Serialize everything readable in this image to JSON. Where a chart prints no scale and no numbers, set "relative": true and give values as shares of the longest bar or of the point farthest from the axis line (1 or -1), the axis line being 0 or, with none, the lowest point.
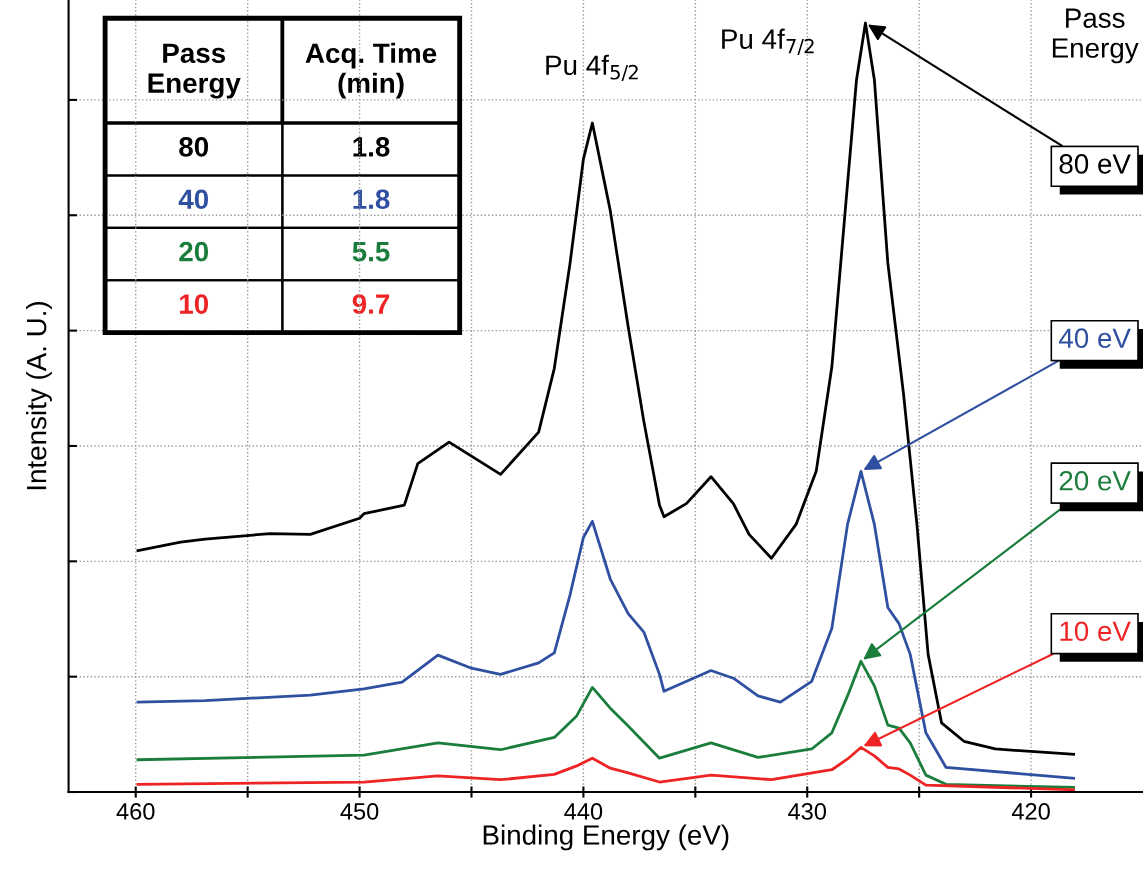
{
  "chart_data": {
    "type": "line",
    "xlabel": "Binding Energy (eV)",
    "ylabel": "Intensity (A. U.)",
    "relative": true,
    "xlim": [
      463,
      415
    ],
    "xticks": [
      460,
      {
        "value": 455,
        "label": null
      },
      450,
      {
        "value": 445,
        "label": null
      },
      440,
      {
        "value": 435,
        "label": null
      },
      430,
      {
        "value": 425,
        "label": null
      },
      420
    ],
    "tick_labels": "x",
    "grid": true,
    "legend_title": "Pass\nEnergy",
    "line_style": "solid",
    "marker": "none",
    "annotations": [
      {
        "text": "Pu 4f$_{5/2}$",
        "x": 439.6,
        "y": 0.87
      },
      {
        "text": "Pu 4f$_{7/2}$",
        "x": 427.4,
        "y": 1.0
      },
      "Pass\nEnergy",
      "Acq. Time\n(min)",
      "80",
      "1.8",
      "40",
      "1.8",
      "20",
      "5.5",
      "10",
      "9.7"
    ],
    "series": [
      {
        "name": "80 eV",
        "color": "#000000",
        "x": [
          459.9,
          458.0,
          456.9,
          454.0,
          452.2,
          450.0,
          449.8,
          448.0,
          447.4,
          446.0,
          443.7,
          442.0,
          441.3,
          440.6,
          440.0,
          439.6,
          438.8,
          438.0,
          437.3,
          436.6,
          436.4,
          435.4,
          434.3,
          433.3,
          432.6,
          431.6,
          430.5,
          429.6,
          428.9,
          428.3,
          427.8,
          427.4,
          427.0,
          426.4,
          425.7,
          425.1,
          424.6,
          424.0,
          423.0,
          421.6,
          418.1
        ],
        "values": [
          0.314,
          0.325,
          0.329,
          0.336,
          0.335,
          0.356,
          0.362,
          0.373,
          0.427,
          0.455,
          0.413,
          0.468,
          0.551,
          0.687,
          0.823,
          0.87,
          0.756,
          0.605,
          0.482,
          0.373,
          0.358,
          0.375,
          0.41,
          0.375,
          0.335,
          0.304,
          0.348,
          0.417,
          0.553,
          0.757,
          0.926,
          1.0,
          0.926,
          0.688,
          0.518,
          0.348,
          0.179,
          0.09,
          0.066,
          0.056,
          0.049
        ]
      },
      {
        "name": "40 eV",
        "color": "#2f4fa0",
        "x": [
          459.9,
          456.9,
          452.2,
          449.8,
          448.1,
          446.5,
          445.0,
          443.7,
          442.0,
          441.3,
          440.6,
          440.0,
          439.6,
          438.8,
          438.0,
          437.3,
          436.6,
          436.4,
          434.3,
          433.3,
          432.2,
          431.2,
          429.8,
          428.9,
          428.2,
          427.6,
          427.0,
          426.4,
          425.9,
          425.4,
          424.7,
          423.8,
          418.1
        ],
        "values": [
          0.117,
          0.119,
          0.126,
          0.134,
          0.143,
          0.178,
          0.161,
          0.153,
          0.168,
          0.181,
          0.256,
          0.331,
          0.352,
          0.277,
          0.232,
          0.208,
          0.153,
          0.131,
          0.158,
          0.148,
          0.125,
          0.117,
          0.144,
          0.213,
          0.348,
          0.417,
          0.348,
          0.24,
          0.219,
          0.179,
          0.077,
          0.032,
          0.018
        ]
      },
      {
        "name": "20 eV",
        "color": "#1b7d3c",
        "x": [
          459.9,
          449.8,
          446.5,
          443.7,
          441.3,
          440.3,
          439.6,
          438.8,
          438.0,
          436.6,
          434.3,
          432.2,
          429.8,
          428.9,
          428.2,
          427.6,
          427.0,
          426.4,
          425.9,
          425.4,
          424.7,
          423.8,
          418.1
        ],
        "values": [
          0.042,
          0.048,
          0.064,
          0.055,
          0.071,
          0.099,
          0.136,
          0.109,
          0.086,
          0.044,
          0.064,
          0.045,
          0.056,
          0.077,
          0.125,
          0.17,
          0.138,
          0.087,
          0.083,
          0.064,
          0.022,
          0.01,
          0.006
        ]
      },
      {
        "name": "10 eV",
        "color": "#ee2424",
        "x": [
          459.9,
          449.8,
          446.5,
          443.7,
          441.3,
          440.3,
          439.6,
          438.8,
          438.0,
          436.6,
          434.3,
          431.6,
          428.9,
          428.2,
          427.6,
          427.0,
          426.4,
          425.9,
          425.4,
          424.7,
          418.1
        ],
        "values": [
          0.01,
          0.013,
          0.021,
          0.016,
          0.023,
          0.034,
          0.044,
          0.031,
          0.025,
          0.013,
          0.022,
          0.016,
          0.029,
          0.043,
          0.058,
          0.047,
          0.032,
          0.03,
          0.022,
          0.009,
          0.003
        ]
      }
    ]
  }
}
